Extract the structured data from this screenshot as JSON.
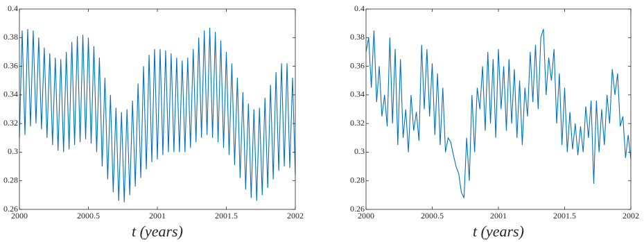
{
  "chart_data": [
    {
      "type": "line",
      "xlabel": "t (years)",
      "x": [
        2000,
        2000.02,
        2000.04,
        2000.06,
        2000.08,
        2000.1,
        2000.12,
        2000.14,
        2000.16,
        2000.18,
        2000.2,
        2000.22,
        2000.24,
        2000.26,
        2000.28,
        2000.3,
        2000.32,
        2000.34,
        2000.36,
        2000.38,
        2000.4,
        2000.42,
        2000.44,
        2000.46,
        2000.48,
        2000.5,
        2000.52,
        2000.54,
        2000.56,
        2000.58,
        2000.6,
        2000.62,
        2000.64,
        2000.66,
        2000.68,
        2000.7,
        2000.72,
        2000.74,
        2000.76,
        2000.78,
        2000.8,
        2000.82,
        2000.84,
        2000.86,
        2000.88,
        2000.9,
        2000.92,
        2000.94,
        2000.96,
        2000.98,
        2001,
        2001.02,
        2001.04,
        2001.06,
        2001.08,
        2001.1,
        2001.12,
        2001.14,
        2001.16,
        2001.18,
        2001.2,
        2001.22,
        2001.24,
        2001.26,
        2001.28,
        2001.3,
        2001.32,
        2001.34,
        2001.36,
        2001.38,
        2001.4,
        2001.42,
        2001.44,
        2001.46,
        2001.48,
        2001.5,
        2001.52,
        2001.54,
        2001.56,
        2001.58,
        2001.6,
        2001.62,
        2001.64,
        2001.66,
        2001.68,
        2001.7,
        2001.72,
        2001.74,
        2001.76,
        2001.78,
        2001.8,
        2001.82,
        2001.84,
        2001.86,
        2001.88,
        2001.9,
        2001.92,
        2001.94,
        2001.96,
        2001.98,
        2002
      ],
      "series": [
        {
          "color": "#0072bd",
          "values": [
            0.31,
            0.385,
            0.312,
            0.386,
            0.318,
            0.385,
            0.32,
            0.38,
            0.316,
            0.373,
            0.31,
            0.369,
            0.305,
            0.366,
            0.301,
            0.365,
            0.3,
            0.37,
            0.302,
            0.377,
            0.305,
            0.381,
            0.307,
            0.382,
            0.309,
            0.38,
            0.306,
            0.374,
            0.3,
            0.366,
            0.29,
            0.352,
            0.281,
            0.34,
            0.272,
            0.331,
            0.266,
            0.328,
            0.265,
            0.33,
            0.27,
            0.336,
            0.276,
            0.348,
            0.282,
            0.36,
            0.288,
            0.368,
            0.293,
            0.372,
            0.295,
            0.372,
            0.298,
            0.371,
            0.3,
            0.369,
            0.3,
            0.366,
            0.3,
            0.364,
            0.3,
            0.366,
            0.303,
            0.372,
            0.307,
            0.38,
            0.31,
            0.385,
            0.312,
            0.387,
            0.31,
            0.384,
            0.307,
            0.378,
            0.303,
            0.37,
            0.298,
            0.362,
            0.291,
            0.352,
            0.282,
            0.342,
            0.274,
            0.334,
            0.268,
            0.33,
            0.266,
            0.331,
            0.27,
            0.338,
            0.275,
            0.347,
            0.281,
            0.356,
            0.287,
            0.362,
            0.29,
            0.362,
            0.289,
            0.352,
            0.284
          ]
        }
      ],
      "xlim": [
        2000,
        2002
      ],
      "xticks": [
        2000,
        2000.5,
        2001,
        2001.5,
        2002
      ],
      "ylim": [
        0.26,
        0.4
      ],
      "yticks": [
        0.26,
        0.28,
        0.3,
        0.32,
        0.34,
        0.36,
        0.38,
        0.4
      ]
    },
    {
      "type": "line",
      "xlabel": "t (years)",
      "x": [
        2000,
        2000.02,
        2000.04,
        2000.06,
        2000.08,
        2000.1,
        2000.12,
        2000.14,
        2000.16,
        2000.18,
        2000.2,
        2000.22,
        2000.24,
        2000.26,
        2000.28,
        2000.3,
        2000.32,
        2000.34,
        2000.36,
        2000.38,
        2000.4,
        2000.42,
        2000.44,
        2000.46,
        2000.48,
        2000.5,
        2000.52,
        2000.54,
        2000.56,
        2000.58,
        2000.6,
        2000.62,
        2000.64,
        2000.66,
        2000.68,
        2000.7,
        2000.72,
        2000.74,
        2000.76,
        2000.78,
        2000.8,
        2000.82,
        2000.84,
        2000.86,
        2000.88,
        2000.9,
        2000.92,
        2000.94,
        2000.96,
        2000.98,
        2001,
        2001.02,
        2001.04,
        2001.06,
        2001.08,
        2001.1,
        2001.12,
        2001.14,
        2001.16,
        2001.18,
        2001.2,
        2001.22,
        2001.24,
        2001.26,
        2001.28,
        2001.3,
        2001.32,
        2001.34,
        2001.36,
        2001.38,
        2001.4,
        2001.42,
        2001.44,
        2001.46,
        2001.48,
        2001.5,
        2001.52,
        2001.54,
        2001.56,
        2001.58,
        2001.6,
        2001.62,
        2001.64,
        2001.66,
        2001.68,
        2001.7,
        2001.72,
        2001.74,
        2001.76,
        2001.78,
        2001.8,
        2001.82,
        2001.84,
        2001.86,
        2001.88,
        2001.9,
        2001.92,
        2001.94,
        2001.96,
        2001.98,
        2002
      ],
      "series": [
        {
          "color": "#0072bd",
          "values": [
            0.37,
            0.38,
            0.345,
            0.385,
            0.335,
            0.36,
            0.325,
            0.34,
            0.318,
            0.38,
            0.32,
            0.372,
            0.305,
            0.365,
            0.31,
            0.33,
            0.3,
            0.34,
            0.315,
            0.328,
            0.308,
            0.375,
            0.33,
            0.372,
            0.325,
            0.362,
            0.312,
            0.355,
            0.305,
            0.345,
            0.3,
            0.31,
            0.307,
            0.298,
            0.29,
            0.285,
            0.272,
            0.268,
            0.31,
            0.28,
            0.34,
            0.3,
            0.345,
            0.33,
            0.36,
            0.315,
            0.37,
            0.32,
            0.365,
            0.31,
            0.372,
            0.33,
            0.36,
            0.315,
            0.365,
            0.32,
            0.358,
            0.31,
            0.35,
            0.305,
            0.345,
            0.325,
            0.37,
            0.335,
            0.375,
            0.33,
            0.38,
            0.386,
            0.34,
            0.366,
            0.35,
            0.372,
            0.32,
            0.355,
            0.305,
            0.345,
            0.3,
            0.328,
            0.302,
            0.32,
            0.298,
            0.318,
            0.3,
            0.332,
            0.31,
            0.336,
            0.278,
            0.336,
            0.3,
            0.33,
            0.305,
            0.34,
            0.32,
            0.358,
            0.34,
            0.355,
            0.318,
            0.325,
            0.296,
            0.312,
            0.295
          ]
        }
      ],
      "xlim": [
        2000,
        2002
      ],
      "xticks": [
        2000,
        2000.5,
        2001,
        2001.5,
        2002
      ],
      "ylim": [
        0.26,
        0.4
      ],
      "yticks": [
        0.26,
        0.28,
        0.3,
        0.32,
        0.34,
        0.36,
        0.38,
        0.4
      ]
    }
  ]
}
